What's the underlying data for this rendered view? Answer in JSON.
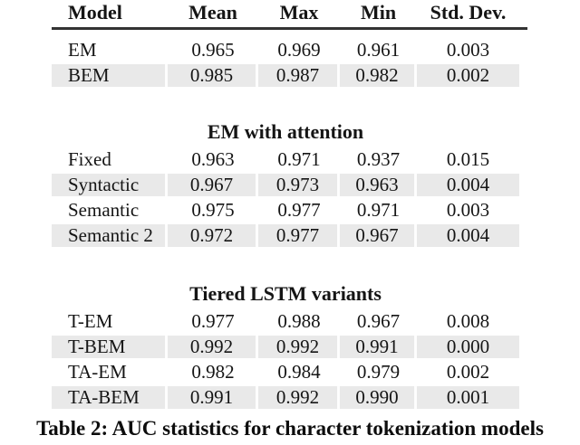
{
  "table": {
    "columns": [
      "Model",
      "Mean",
      "Max",
      "Min",
      "Std. Dev."
    ],
    "sections": [
      {
        "title": null,
        "rows": [
          {
            "cells": [
              "EM",
              "0.965",
              "0.969",
              "0.961",
              "0.003"
            ],
            "shaded": false
          },
          {
            "cells": [
              "BEM",
              "0.985",
              "0.987",
              "0.982",
              "0.002"
            ],
            "shaded": true
          }
        ]
      },
      {
        "title": "EM with attention",
        "rows": [
          {
            "cells": [
              "Fixed",
              "0.963",
              "0.971",
              "0.937",
              "0.015"
            ],
            "shaded": false
          },
          {
            "cells": [
              "Syntactic",
              "0.967",
              "0.973",
              "0.963",
              "0.004"
            ],
            "shaded": true
          },
          {
            "cells": [
              "Semantic",
              "0.975",
              "0.977",
              "0.971",
              "0.003"
            ],
            "shaded": false
          },
          {
            "cells": [
              "Semantic 2",
              "0.972",
              "0.977",
              "0.967",
              "0.004"
            ],
            "shaded": true
          }
        ]
      },
      {
        "title": "Tiered LSTM variants",
        "rows": [
          {
            "cells": [
              "T-EM",
              "0.977",
              "0.988",
              "0.967",
              "0.008"
            ],
            "shaded": false
          },
          {
            "cells": [
              "T-BEM",
              "0.992",
              "0.992",
              "0.991",
              "0.000"
            ],
            "shaded": true
          },
          {
            "cells": [
              "TA-EM",
              "0.982",
              "0.984",
              "0.979",
              "0.002"
            ],
            "shaded": false
          },
          {
            "cells": [
              "TA-BEM",
              "0.991",
              "0.992",
              "0.990",
              "0.001"
            ],
            "shaded": true
          }
        ]
      }
    ]
  },
  "caption": "Table 2: AUC statistics for character tokenization models",
  "colors": {
    "row_shade": "#e9e9e9",
    "header_rule": "#333333",
    "text": "#151515"
  }
}
